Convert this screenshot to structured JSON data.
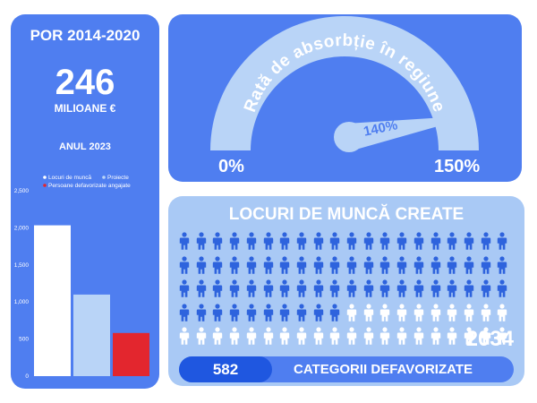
{
  "left_panel": {
    "title": "POR 2014-2020",
    "amount": "246",
    "unit": "MILIOANE €",
    "year": "ANUL 2023"
  },
  "gauge": {
    "title": "Rată de absorbție în regiune",
    "min_label": "0%",
    "max_label": "150%",
    "value_label": "140%",
    "value": 140,
    "max": 150
  },
  "jobs": {
    "title": "LOCURI DE MUNCĂ CREATE",
    "count": "2034",
    "filled_icons": 70,
    "total_icons": 100,
    "disadvantaged_count": "582",
    "disadvantaged_label": "CATEGORII DEFAVORIZATE"
  },
  "colors": {
    "panel_blue": "#4f7ef0",
    "light_blue": "#a9c9f5",
    "icon_dark": "#2e63dd",
    "icon_light": "#ffffff",
    "bar_jobs": "#ffffff",
    "bar_projects": "#b9d4f7",
    "bar_disadvantaged": "#e3262e"
  },
  "chart_data": {
    "type": "bar",
    "categories": [
      "Locuri de muncă",
      "Proiecte",
      "Persoane defavorizate angajate"
    ],
    "values": [
      2034,
      1100,
      582
    ],
    "ylim": [
      0,
      2500
    ],
    "yticks": [
      0,
      500,
      1000,
      1500,
      2000,
      2500
    ],
    "ytick_labels": [
      "0",
      "500",
      "1,000",
      "1,500",
      "2,000",
      "2,500"
    ],
    "legend": [
      "Locuri de muncă",
      "Proiecte",
      "Persoane defavorizate angajate"
    ],
    "legend_placement": "top",
    "grid": false
  }
}
